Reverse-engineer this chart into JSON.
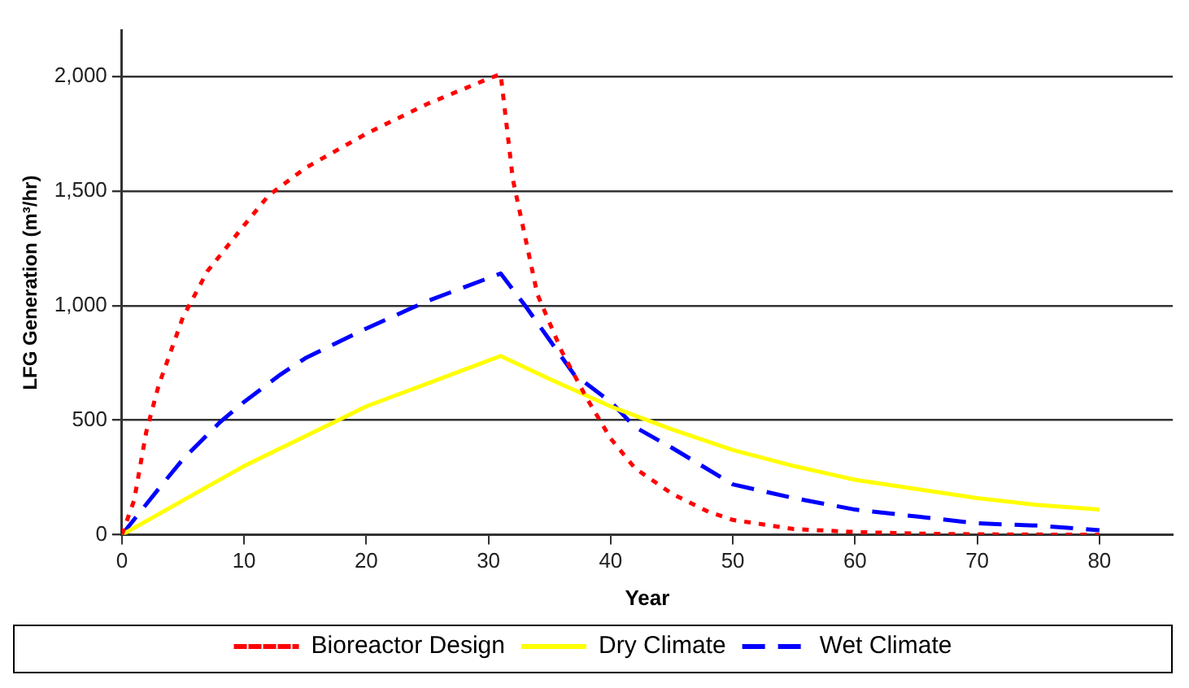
{
  "chart_data": {
    "type": "line",
    "xlabel": "Year",
    "ylabel": "LFG Generation (m³/hr)",
    "xlim": [
      0,
      86
    ],
    "xticks": [
      0,
      10,
      20,
      30,
      40,
      50,
      60,
      70,
      80
    ],
    "ylim": [
      0,
      2200
    ],
    "yticks": [
      {
        "value": 0,
        "label": "0"
      },
      {
        "value": 500,
        "label": "500"
      },
      {
        "value": 1000,
        "label": "1,000"
      },
      {
        "value": 1500,
        "label": "1,500"
      },
      {
        "value": 2000,
        "label": "2,000"
      }
    ],
    "grid": "y",
    "legend": "bottom",
    "marker": "none",
    "series": [
      {
        "name": "Bioreactor Design",
        "color": "#ff0000",
        "line_style": "dotted",
        "x": [
          0,
          1,
          2,
          3,
          5,
          7,
          10,
          12,
          15,
          20,
          25,
          30,
          31,
          32,
          34,
          36,
          38,
          40,
          42,
          45,
          48,
          50,
          55,
          60,
          65,
          70,
          80
        ],
        "values": [
          0,
          150,
          450,
          650,
          950,
          1150,
          1350,
          1480,
          1600,
          1750,
          1880,
          1990,
          2010,
          1550,
          1050,
          800,
          600,
          420,
          290,
          180,
          100,
          65,
          25,
          12,
          5,
          2,
          0
        ]
      },
      {
        "name": "Dry Climate",
        "color": "#ffff00",
        "line_style": "solid",
        "x": [
          0,
          5,
          10,
          15,
          20,
          25,
          30,
          31,
          35,
          40,
          45,
          50,
          55,
          60,
          65,
          70,
          75,
          80
        ],
        "values": [
          0,
          150,
          300,
          430,
          560,
          660,
          760,
          780,
          680,
          560,
          460,
          370,
          300,
          240,
          200,
          160,
          130,
          110
        ]
      },
      {
        "name": "Wet Climate",
        "color": "#0000ff",
        "line_style": "dashed",
        "x": [
          0,
          3,
          5,
          8,
          10,
          13,
          15,
          20,
          25,
          30,
          31,
          33,
          35,
          37,
          40,
          42,
          45,
          50,
          55,
          60,
          65,
          70,
          75,
          80
        ],
        "values": [
          0,
          200,
          330,
          490,
          580,
          700,
          770,
          900,
          1020,
          1120,
          1140,
          1000,
          850,
          700,
          580,
          470,
          380,
          220,
          160,
          110,
          80,
          50,
          40,
          20
        ]
      }
    ]
  }
}
